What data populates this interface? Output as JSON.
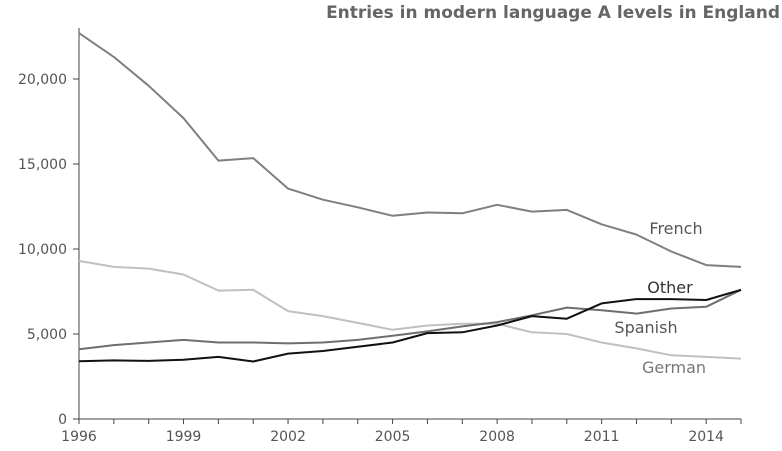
{
  "chart_data": {
    "type": "line",
    "title": "Entries in modern language A levels in England",
    "xlabel": "",
    "ylabel": "",
    "x": [
      1996,
      1997,
      1998,
      1999,
      2000,
      2001,
      2002,
      2003,
      2004,
      2005,
      2006,
      2007,
      2008,
      2009,
      2010,
      2011,
      2012,
      2013,
      2014,
      2015
    ],
    "xlim": [
      1996,
      2015
    ],
    "ylim": [
      0,
      23000
    ],
    "x_ticks": [
      "1996",
      "1999",
      "2002",
      "2005",
      "2008",
      "2011",
      "2014"
    ],
    "y_ticks": [
      "0",
      "5,000",
      "10,000",
      "15,000",
      "20,000"
    ],
    "grid": false,
    "legend": "labels at line ends",
    "series": [
      {
        "name": "French",
        "color": "#7f7f7f",
        "label_color": "#555555",
        "values": [
          22700,
          21300,
          19600,
          17700,
          15200,
          15350,
          13550,
          12900,
          12450,
          11950,
          12150,
          12100,
          12600,
          12200,
          12300,
          11450,
          10850,
          9850,
          9050,
          8950
        ]
      },
      {
        "name": "German",
        "color": "#c0c0c0",
        "label_color": "#777777",
        "values": [
          9300,
          8950,
          8850,
          8500,
          7550,
          7600,
          6350,
          6050,
          5650,
          5250,
          5500,
          5600,
          5600,
          5100,
          5000,
          4500,
          4150,
          3750,
          3650,
          3550
        ]
      },
      {
        "name": "Spanish",
        "color": "#6e6e6e",
        "label_color": "#555555",
        "values": [
          4100,
          4350,
          4500,
          4650,
          4500,
          4500,
          4450,
          4500,
          4650,
          4900,
          5150,
          5450,
          5700,
          6100,
          6550,
          6400,
          6200,
          6500,
          6600,
          7600
        ]
      },
      {
        "name": "Other",
        "color": "#111111",
        "label_color": "#333333",
        "values": [
          3400,
          3450,
          3420,
          3480,
          3650,
          3380,
          3850,
          4000,
          4250,
          4500,
          5050,
          5100,
          5500,
          6050,
          5900,
          6800,
          7050,
          7050,
          7000,
          7600
        ]
      }
    ]
  }
}
